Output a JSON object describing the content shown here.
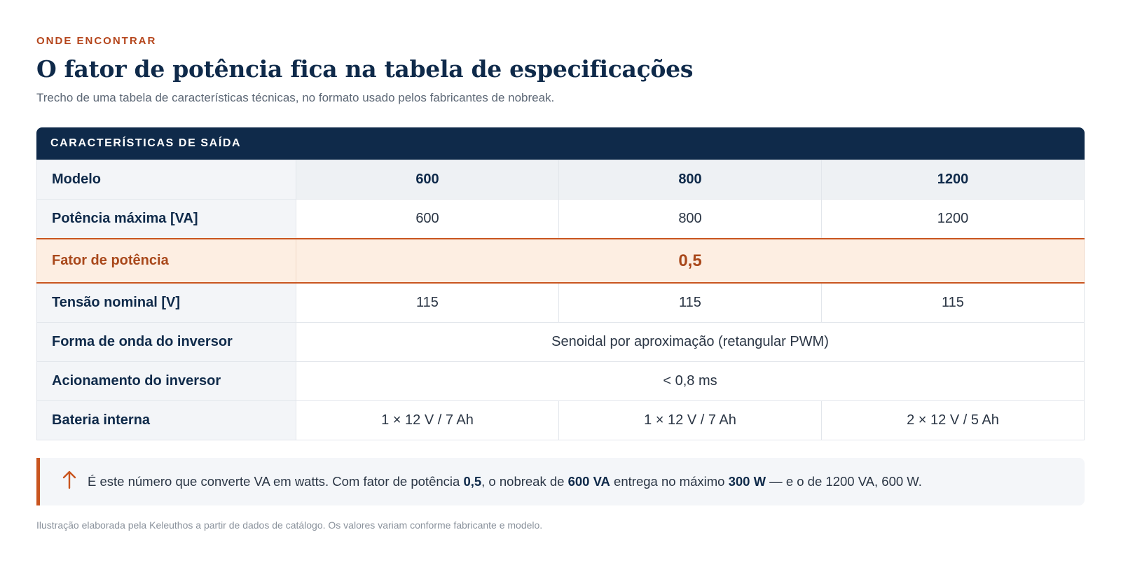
{
  "header": {
    "eyebrow": "ONDE ENCONTRAR",
    "title": "O fator de potência fica na tabela de especificações",
    "subtitle": "Trecho de uma tabela de características técnicas, no formato usado pelos fabricantes de nobreak."
  },
  "table": {
    "section_title": "CARACTERÍSTICAS DE SAÍDA",
    "rows": [
      {
        "label": "Modelo",
        "values": [
          "600",
          "800",
          "1200"
        ]
      },
      {
        "label": "Potência máxima [VA]",
        "values": [
          "600",
          "800",
          "1200"
        ]
      },
      {
        "label": "Fator de potência",
        "merged_value": "0,5"
      },
      {
        "label": "Tensão nominal [V]",
        "values": [
          "115",
          "115",
          "115"
        ]
      },
      {
        "label": "Forma de onda do inversor",
        "merged_value": "Senoidal por aproximação (retangular PWM)"
      },
      {
        "label": "Acionamento do inversor",
        "merged_value": "< 0,8 ms"
      },
      {
        "label": "Bateria interna",
        "values": [
          "1 × 12 V / 7 Ah",
          "1 × 12 V / 7 Ah",
          "2 × 12 V / 5 Ah"
        ]
      }
    ]
  },
  "note": {
    "icon": "arrow-up-icon",
    "part1": "É este número que converte VA em watts. Com fator de potência ",
    "bold1": "0,5",
    "part2": ", o nobreak de ",
    "bold2": "600 VA",
    "part3": " entrega no máximo ",
    "bold3": "300 W",
    "part4": " — e o de 1200 VA, 600 W."
  },
  "footer": "Ilustração elaborada pela Keleuthos a partir de dados de catálogo. Os valores variam conforme fabricante e modelo.",
  "colors": {
    "navy": "#0f2a4a",
    "accent": "#c9551f",
    "highlight_bg": "#fdeee2"
  }
}
